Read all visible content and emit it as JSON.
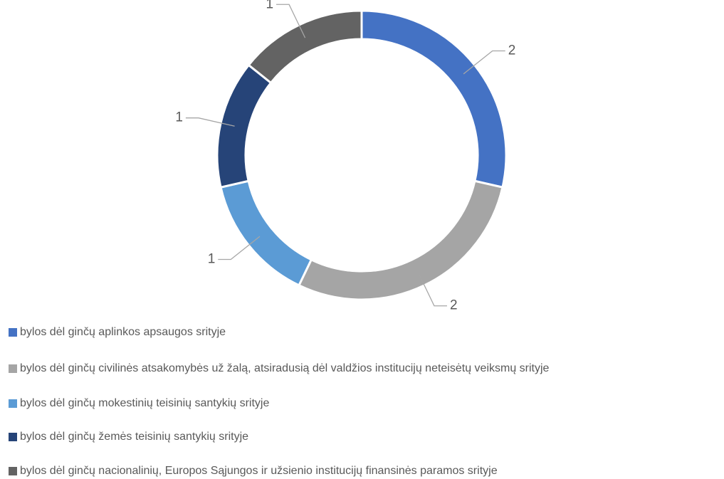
{
  "chart_data": {
    "type": "donut",
    "categories": [
      "bylos dėl ginčų aplinkos apsaugos srityje",
      "bylos dėl ginčų civilinės atsakomybės už žalą, atsiradusią dėl valdžios institucijų neteisėtų veiksmų srityje",
      "bylos dėl ginčų mokestinių teisinių santykių srityje",
      "bylos dėl ginčų žemės teisinių santykių srityje",
      "bylos dėl ginčų nacionalinių, Europos Sąjungos ir užsienio institucijų finansinės paramos srityje"
    ],
    "values": [
      2,
      2,
      1,
      1,
      1
    ],
    "colors": [
      "#4472c4",
      "#a5a5a5",
      "#5b9bd5",
      "#264478",
      "#636363"
    ],
    "legend": "bottom"
  }
}
